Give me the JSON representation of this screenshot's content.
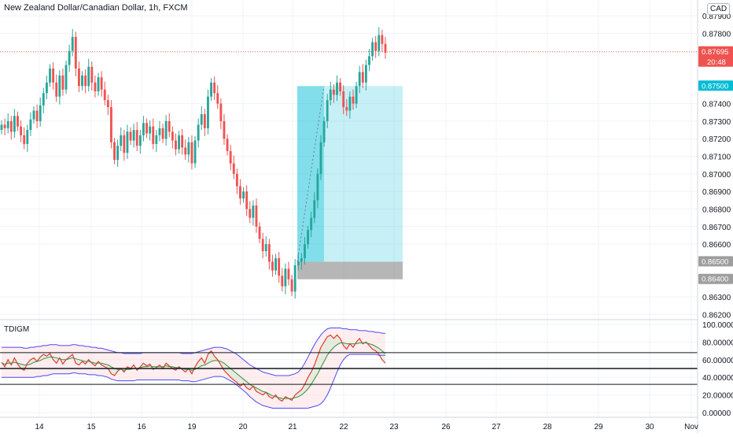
{
  "header": {
    "title": "New Zealand Dollar/Canadian Dollar, 1h, FXCM",
    "currency_button": "CAD"
  },
  "indicator": {
    "title": "TDIGM"
  },
  "colors": {
    "up": "#26a69a",
    "down": "#ef5350",
    "target": "#00bcd4",
    "stop": "#9e9e9e"
  },
  "chart_data": [
    {
      "type": "candlestick",
      "title": "New Zealand Dollar/Canadian Dollar, 1h, FXCM",
      "x_ticks": [
        "14",
        "15",
        "16",
        "19",
        "20",
        "21",
        "22",
        "23",
        "26",
        "27",
        "28",
        "29",
        "30",
        "Nov"
      ],
      "y_ticks": [
        "0.87900",
        "0.87800",
        "0.87400",
        "0.87300",
        "0.87200",
        "0.87100",
        "0.87000",
        "0.86900",
        "0.86800",
        "0.86700",
        "0.86600",
        "0.86300",
        "0.86200"
      ],
      "ylim": [
        0.8617,
        0.8799
      ],
      "price_labels": [
        {
          "value": "0.87695",
          "time": "20:48",
          "color": "#ef5350"
        },
        {
          "value": "0.87500",
          "color": "#00bcd4"
        },
        {
          "value": "0.86500",
          "color": "#9e9e9e"
        },
        {
          "value": "0.86400",
          "color": "#9e9e9e"
        }
      ],
      "position": {
        "entry": 0.865,
        "target": 0.875,
        "stop": 0.864
      },
      "closes": [
        0.8728,
        0.8726,
        0.873,
        0.8724,
        0.8733,
        0.8727,
        0.8722,
        0.8717,
        0.8725,
        0.8731,
        0.8736,
        0.873,
        0.8739,
        0.8746,
        0.8752,
        0.876,
        0.8752,
        0.8744,
        0.8756,
        0.8748,
        0.8762,
        0.877,
        0.8778,
        0.876,
        0.875,
        0.8756,
        0.875,
        0.8761,
        0.8752,
        0.8747,
        0.8755,
        0.8748,
        0.8742,
        0.8738,
        0.8718,
        0.8708,
        0.8716,
        0.8722,
        0.8712,
        0.8724,
        0.8719,
        0.8725,
        0.8716,
        0.8722,
        0.8729,
        0.8723,
        0.8727,
        0.8717,
        0.8722,
        0.8726,
        0.872,
        0.873,
        0.8724,
        0.8719,
        0.8714,
        0.8722,
        0.8715,
        0.8711,
        0.8718,
        0.8706,
        0.8719,
        0.8728,
        0.8734,
        0.8726,
        0.8744,
        0.8752,
        0.8746,
        0.874,
        0.873,
        0.872,
        0.8713,
        0.8706,
        0.87,
        0.8693,
        0.8686,
        0.869,
        0.868,
        0.8675,
        0.8682,
        0.867,
        0.8663,
        0.8656,
        0.866,
        0.865,
        0.8645,
        0.8652,
        0.8642,
        0.8636,
        0.8646,
        0.864,
        0.8633,
        0.8648,
        0.865,
        0.8652,
        0.866,
        0.8668,
        0.8675,
        0.8685,
        0.87,
        0.8718,
        0.873,
        0.8742,
        0.8748,
        0.8745,
        0.8752,
        0.8747,
        0.8738,
        0.8736,
        0.8744,
        0.874,
        0.875,
        0.8758,
        0.8752,
        0.8762,
        0.8767,
        0.8775,
        0.877,
        0.8779,
        0.8774,
        0.8769
      ]
    },
    {
      "type": "line",
      "title": "TDIGM",
      "x_ticks": [
        "14",
        "15",
        "16",
        "19",
        "20",
        "21",
        "22",
        "23",
        "26",
        "27",
        "28",
        "29",
        "30",
        "Nov"
      ],
      "y_ticks": [
        "100.00000",
        "80.00000",
        "60.00000",
        "40.00000",
        "20.00000",
        "0.00000"
      ],
      "ylim": [
        0,
        100
      ],
      "levels": [
        68,
        50,
        32
      ],
      "series": [
        {
          "color": "#e53935",
          "values": [
            57,
            52,
            60,
            54,
            62,
            55,
            50,
            48,
            56,
            60,
            62,
            58,
            63,
            66,
            64,
            67,
            60,
            56,
            62,
            55,
            60,
            63,
            66,
            56,
            54,
            58,
            55,
            60,
            56,
            53,
            58,
            54,
            52,
            50,
            44,
            42,
            47,
            50,
            46,
            52,
            50,
            54,
            48,
            52,
            56,
            53,
            55,
            49,
            51,
            54,
            50,
            56,
            53,
            50,
            48,
            52,
            49,
            46,
            50,
            44,
            52,
            58,
            62,
            56,
            66,
            70,
            64,
            60,
            54,
            48,
            44,
            40,
            37,
            34,
            30,
            33,
            28,
            26,
            30,
            24,
            22,
            20,
            23,
            18,
            16,
            20,
            15,
            13,
            18,
            16,
            14,
            20,
            23,
            26,
            32,
            40,
            46,
            54,
            64,
            74,
            80,
            86,
            88,
            84,
            88,
            84,
            76,
            72,
            78,
            74,
            80,
            84,
            78,
            80,
            76,
            72,
            70,
            66,
            60,
            56
          ]
        },
        {
          "color": "#388e3c",
          "values": [
            56,
            55,
            56,
            56,
            57,
            56,
            55,
            54,
            54,
            55,
            57,
            58,
            59,
            61,
            62,
            63,
            63,
            62,
            61,
            60,
            60,
            61,
            62,
            61,
            60,
            59,
            58,
            58,
            57,
            56,
            56,
            56,
            55,
            54,
            52,
            50,
            49,
            49,
            48,
            49,
            49,
            50,
            50,
            51,
            52,
            52,
            53,
            52,
            52,
            52,
            52,
            53,
            52,
            52,
            51,
            51,
            50,
            49,
            49,
            48,
            49,
            51,
            53,
            54,
            56,
            58,
            59,
            59,
            58,
            56,
            53,
            50,
            47,
            44,
            41,
            38,
            35,
            32,
            30,
            28,
            26,
            24,
            23,
            21,
            19,
            18,
            17,
            16,
            16,
            16,
            16,
            17,
            18,
            20,
            23,
            27,
            32,
            38,
            44,
            51,
            58,
            65,
            70,
            74,
            77,
            79,
            79,
            78,
            78,
            78,
            78,
            79,
            79,
            79,
            78,
            77,
            75,
            73,
            70,
            67
          ]
        },
        {
          "color": "#4a4af4",
          "values": [
            74,
            74,
            74,
            74,
            74,
            74,
            74,
            73,
            73,
            74,
            74,
            75,
            75,
            76,
            76,
            77,
            77,
            77,
            76,
            76,
            76,
            76,
            77,
            77,
            76,
            76,
            75,
            75,
            74,
            74,
            73,
            73,
            72,
            71,
            70,
            69,
            68,
            68,
            67,
            67,
            67,
            67,
            67,
            67,
            68,
            68,
            68,
            68,
            68,
            68,
            68,
            68,
            68,
            68,
            68,
            68,
            67,
            67,
            67,
            67,
            68,
            69,
            70,
            71,
            72,
            73,
            74,
            74,
            74,
            73,
            72,
            70,
            68,
            66,
            63,
            60,
            57,
            54,
            52,
            50,
            48,
            46,
            45,
            44,
            43,
            42,
            42,
            42,
            42,
            42,
            43,
            44,
            46,
            50,
            56,
            63,
            70,
            77,
            83,
            88,
            92,
            95,
            96,
            96,
            96,
            96,
            95,
            95,
            94,
            94,
            94,
            93,
            93,
            93,
            92,
            92,
            91,
            91,
            90,
            90
          ]
        },
        {
          "color": "#4a4af4",
          "values": [
            40,
            40,
            40,
            40,
            40,
            40,
            40,
            40,
            40,
            40,
            40,
            41,
            41,
            42,
            42,
            43,
            44,
            44,
            44,
            44,
            44,
            44,
            45,
            45,
            44,
            44,
            44,
            43,
            43,
            43,
            42,
            42,
            41,
            40,
            38,
            37,
            36,
            36,
            36,
            36,
            36,
            36,
            37,
            37,
            37,
            37,
            37,
            37,
            37,
            37,
            37,
            37,
            37,
            37,
            37,
            37,
            36,
            36,
            36,
            35,
            35,
            36,
            37,
            38,
            39,
            40,
            41,
            41,
            41,
            40,
            38,
            36,
            34,
            31,
            28,
            25,
            22,
            18,
            15,
            12,
            10,
            8,
            7,
            6,
            5,
            5,
            5,
            5,
            5,
            5,
            5,
            5,
            5,
            5,
            5,
            5,
            6,
            7,
            8,
            10,
            14,
            20,
            28,
            37,
            46,
            54,
            60,
            64,
            66,
            66,
            66,
            66,
            66,
            66,
            66,
            66,
            66,
            65,
            65,
            65
          ]
        }
      ]
    }
  ]
}
